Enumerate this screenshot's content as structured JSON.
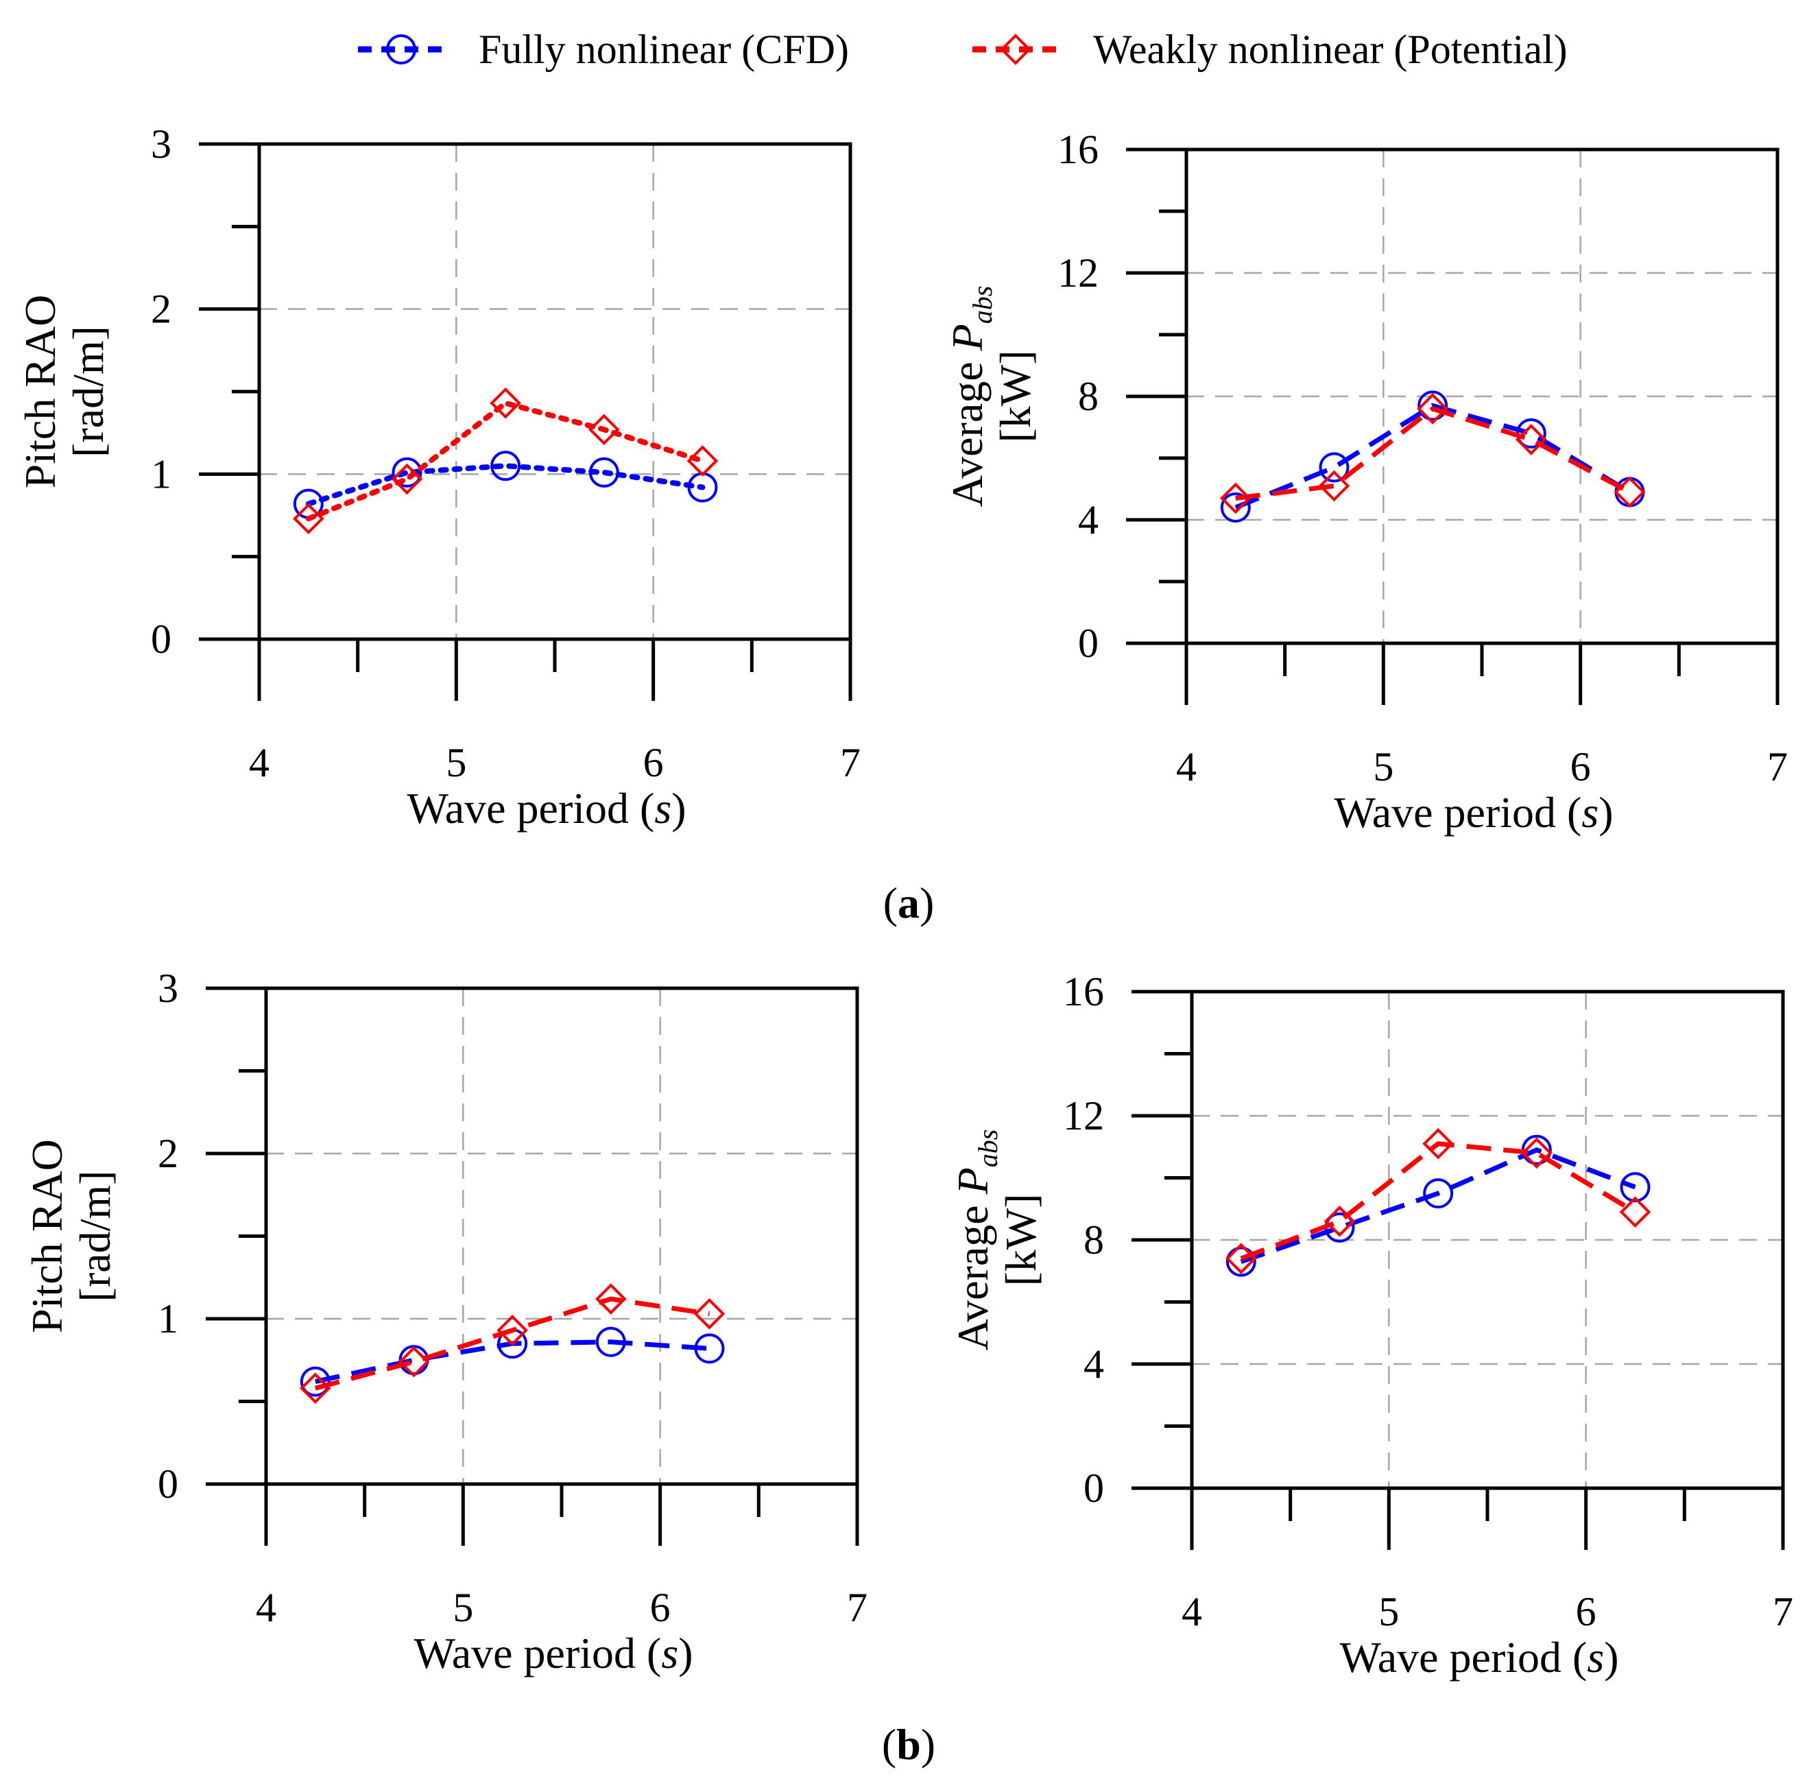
{
  "legend": {
    "cfd_label": "Fully nonlinear (CFD)",
    "potential_label": "Weakly nonlinear (Potential)"
  },
  "colors": {
    "cfd": "#0000ff",
    "potential": "#ff0000",
    "grid": "#a6a6a6",
    "axis": "#000000"
  },
  "panels": {
    "a": "a",
    "b": "b"
  },
  "xaxis_label": {
    "prefix": "Wave period (",
    "unit": "s",
    "suffix": ")"
  },
  "chart_data": [
    {
      "id": "a-pitch",
      "panel": "a",
      "type": "line",
      "ylabel_line1": "Pitch RAO",
      "ylabel_line2": "[rad/m]",
      "xlim": [
        4,
        7
      ],
      "ylim": [
        0,
        3
      ],
      "xticks": [
        "4",
        "5",
        "6",
        "7"
      ],
      "yticks": [
        "0",
        "1",
        "2",
        "3"
      ],
      "dash_style": "dotted",
      "x": [
        4.25,
        4.75,
        5.25,
        5.75,
        6.25
      ],
      "series": [
        {
          "name": "Fully nonlinear (CFD)",
          "marker": "circle",
          "values": [
            0.82,
            1.01,
            1.05,
            1.01,
            0.92
          ]
        },
        {
          "name": "Weakly nonlinear (Potential)",
          "marker": "diamond",
          "values": [
            0.73,
            0.97,
            1.43,
            1.27,
            1.08
          ]
        }
      ]
    },
    {
      "id": "a-power",
      "panel": "a",
      "type": "line",
      "ylabel_line1": "Average ",
      "ylabel_var": "P",
      "ylabel_sub": "abs",
      "ylabel_line2": "[kW]",
      "xlim": [
        4,
        7
      ],
      "ylim": [
        0,
        16
      ],
      "xticks": [
        "4",
        "5",
        "6",
        "7"
      ],
      "yticks": [
        "0",
        "4",
        "8",
        "12",
        "16"
      ],
      "dash_style": "dashed",
      "x": [
        4.25,
        4.75,
        5.25,
        5.75,
        6.25
      ],
      "series": [
        {
          "name": "Fully nonlinear (CFD)",
          "marker": "circle",
          "values": [
            4.4,
            5.7,
            7.7,
            6.8,
            4.9
          ]
        },
        {
          "name": "Weakly nonlinear (Potential)",
          "marker": "diamond",
          "values": [
            4.7,
            5.1,
            7.6,
            6.6,
            4.9
          ]
        }
      ]
    },
    {
      "id": "b-pitch",
      "panel": "b",
      "type": "line",
      "ylabel_line1": "Pitch RAO",
      "ylabel_line2": "[rad/m]",
      "xlim": [
        4,
        7
      ],
      "ylim": [
        0,
        3
      ],
      "xticks": [
        "4",
        "5",
        "6",
        "7"
      ],
      "yticks": [
        "0",
        "1",
        "2",
        "3"
      ],
      "dash_style": "dashed",
      "x": [
        4.25,
        4.75,
        5.25,
        5.75,
        6.25
      ],
      "series": [
        {
          "name": "Fully nonlinear (CFD)",
          "marker": "circle",
          "values": [
            0.62,
            0.75,
            0.85,
            0.86,
            0.82
          ]
        },
        {
          "name": "Weakly nonlinear (Potential)",
          "marker": "diamond",
          "values": [
            0.58,
            0.74,
            0.93,
            1.12,
            1.03
          ]
        }
      ]
    },
    {
      "id": "b-power",
      "panel": "b",
      "type": "line",
      "ylabel_line1": "Average ",
      "ylabel_var": "P",
      "ylabel_sub": "abs",
      "ylabel_line2": "[kW]",
      "xlim": [
        4,
        7
      ],
      "ylim": [
        0,
        16
      ],
      "xticks": [
        "4",
        "5",
        "6",
        "7"
      ],
      "yticks": [
        "0",
        "4",
        "8",
        "12",
        "16"
      ],
      "dash_style": "dashed",
      "x": [
        4.25,
        4.75,
        5.25,
        5.75,
        6.25
      ],
      "series": [
        {
          "name": "Fully nonlinear (CFD)",
          "marker": "circle",
          "values": [
            7.3,
            8.4,
            9.5,
            10.9,
            9.7
          ]
        },
        {
          "name": "Weakly nonlinear (Potential)",
          "marker": "diamond",
          "values": [
            7.4,
            8.6,
            11.1,
            10.8,
            8.9
          ]
        }
      ]
    }
  ]
}
